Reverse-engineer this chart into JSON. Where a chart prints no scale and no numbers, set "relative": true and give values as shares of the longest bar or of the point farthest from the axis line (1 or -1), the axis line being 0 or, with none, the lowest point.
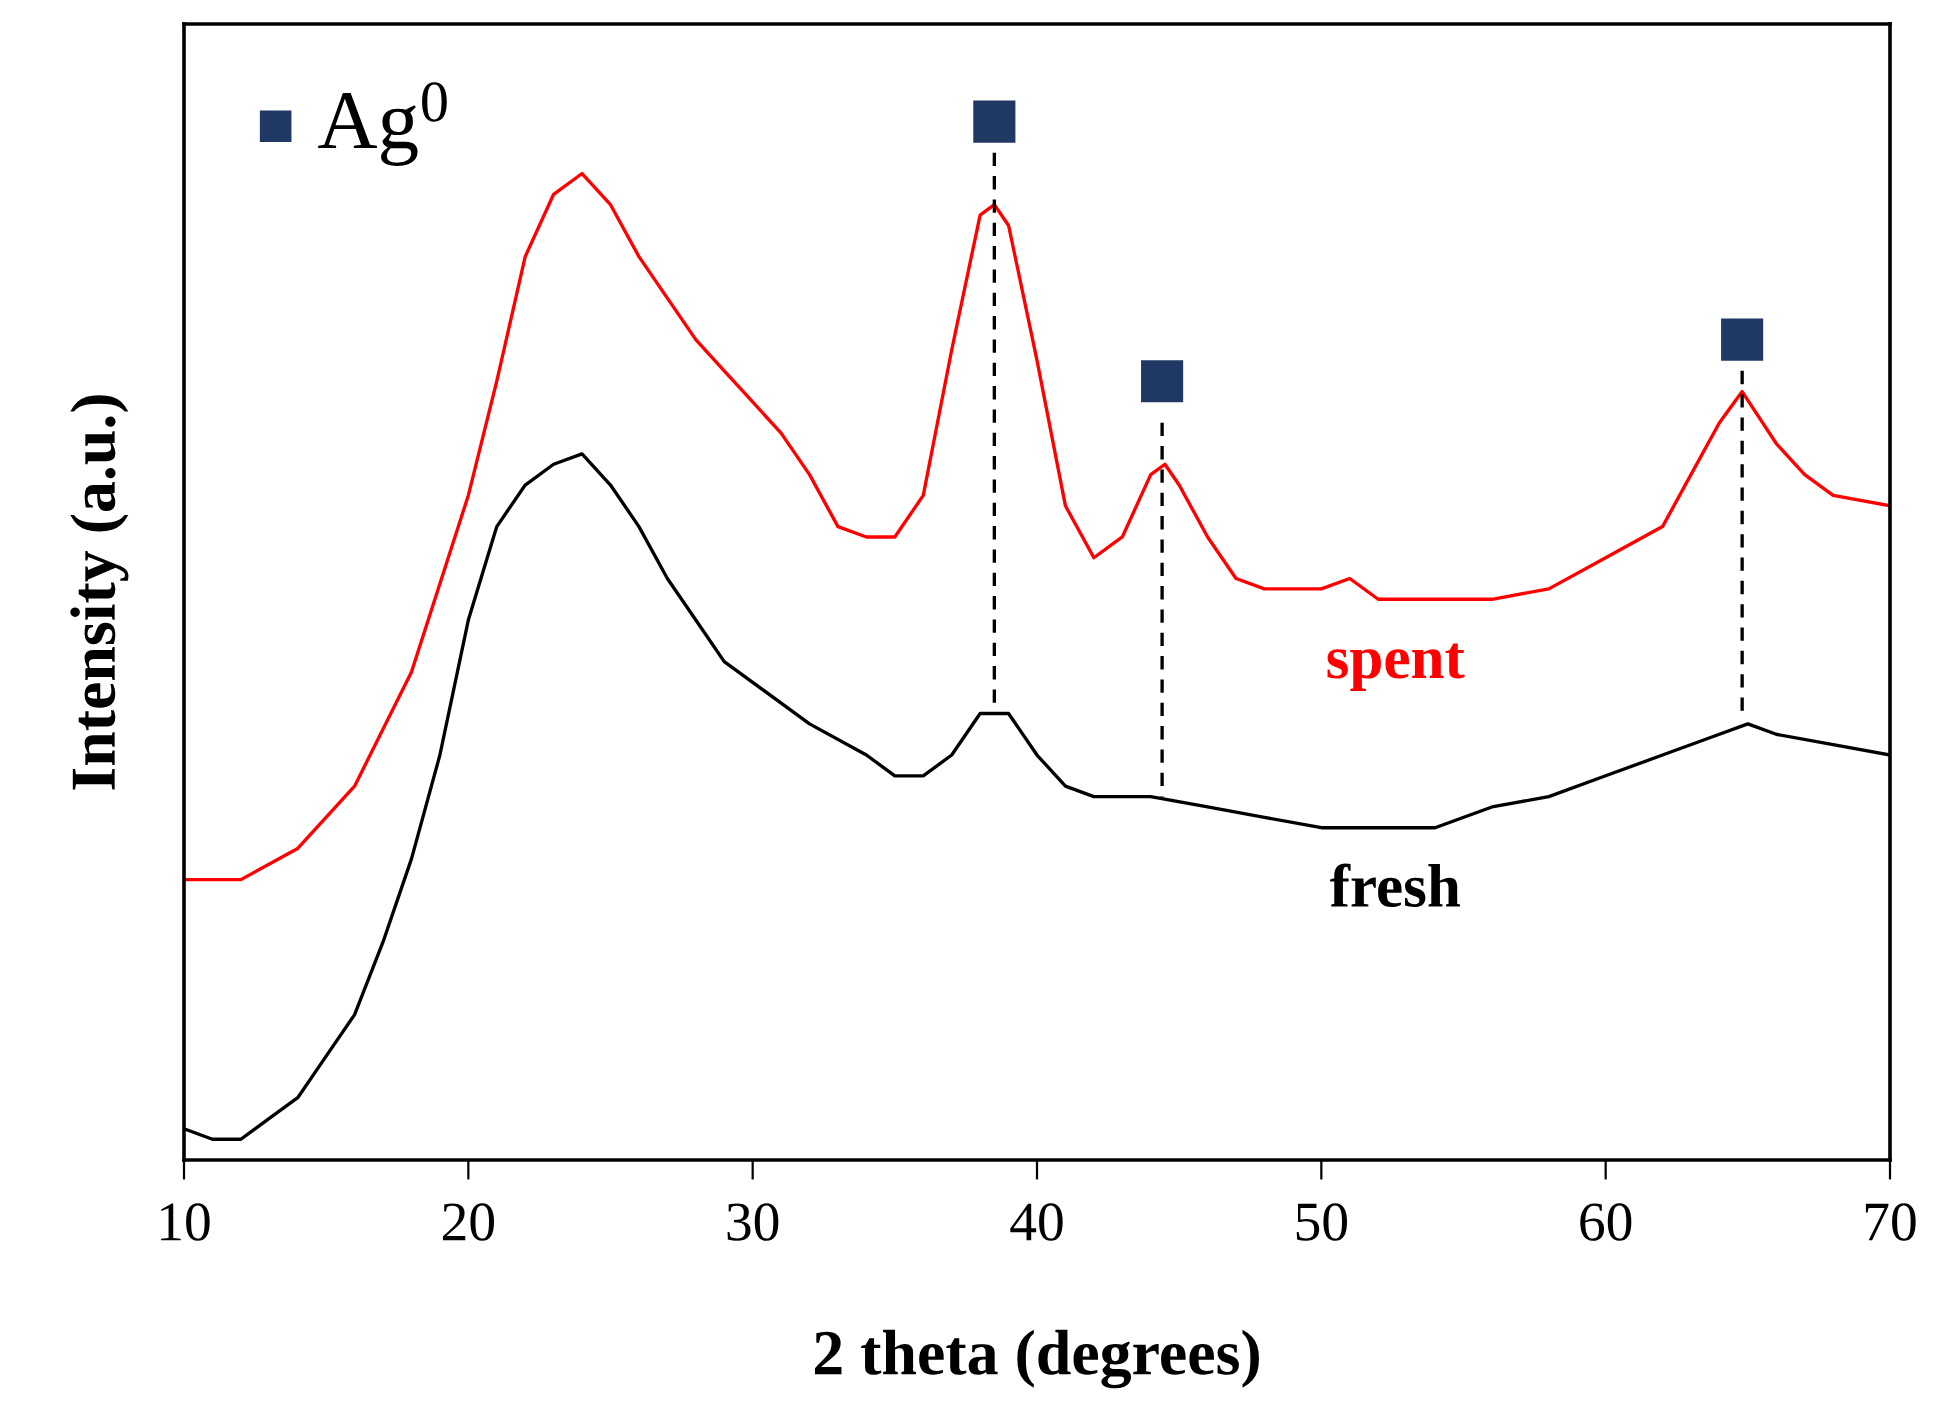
{
  "chart_data": {
    "type": "line",
    "relative": true,
    "xlabel": "2 theta (degrees)",
    "ylabel": "Intensity (a.u.)",
    "xlim": [
      10,
      70
    ],
    "xticks": [
      10,
      20,
      30,
      40,
      50,
      60,
      70
    ],
    "legend": "top left",
    "tick_labels": "x",
    "annotations": [
      "spent",
      "fresh"
    ],
    "series": [
      {
        "color": "#ff0000",
        "line_style": "solid",
        "x": [
          10,
          12,
          14,
          16,
          18,
          20,
          21,
          22,
          23,
          24,
          25,
          26,
          27,
          28,
          29,
          30,
          31,
          32,
          33,
          34,
          35,
          36,
          37,
          38,
          38.5,
          39,
          40,
          41,
          42,
          43,
          44,
          44.5,
          45,
          46,
          47,
          48,
          50,
          51,
          52,
          54,
          56,
          58,
          60,
          62,
          63,
          64,
          64.8,
          66,
          67,
          68,
          70
        ],
        "values": [
          0.27,
          0.27,
          0.3,
          0.36,
          0.47,
          0.64,
          0.75,
          0.87,
          0.93,
          0.95,
          0.92,
          0.87,
          0.83,
          0.79,
          0.76,
          0.73,
          0.7,
          0.66,
          0.61,
          0.6,
          0.6,
          0.64,
          0.78,
          0.91,
          0.92,
          0.9,
          0.77,
          0.63,
          0.58,
          0.6,
          0.66,
          0.67,
          0.65,
          0.6,
          0.56,
          0.55,
          0.55,
          0.56,
          0.54,
          0.54,
          0.54,
          0.55,
          0.58,
          0.61,
          0.66,
          0.71,
          0.74,
          0.69,
          0.66,
          0.64,
          0.63
        ]
      },
      {
        "color": "#000000",
        "line_style": "solid",
        "x": [
          10,
          11,
          12,
          13,
          14,
          15,
          16,
          17,
          18,
          19,
          20,
          21,
          22,
          23,
          24,
          25,
          26,
          27,
          28,
          29,
          30,
          32,
          34,
          35,
          36,
          37,
          38,
          39,
          40,
          41,
          42,
          44,
          46,
          48,
          50,
          52,
          54,
          56,
          58,
          60,
          62,
          64,
          65,
          66,
          68,
          70
        ],
        "values": [
          0.03,
          0.02,
          0.02,
          0.04,
          0.06,
          0.1,
          0.14,
          0.21,
          0.29,
          0.39,
          0.52,
          0.61,
          0.65,
          0.67,
          0.68,
          0.65,
          0.61,
          0.56,
          0.52,
          0.48,
          0.46,
          0.42,
          0.39,
          0.37,
          0.37,
          0.39,
          0.43,
          0.43,
          0.39,
          0.36,
          0.35,
          0.35,
          0.34,
          0.33,
          0.32,
          0.32,
          0.32,
          0.34,
          0.35,
          0.37,
          0.39,
          0.41,
          0.42,
          0.41,
          0.4,
          0.39
        ]
      },
      {
        "color": "#000000",
        "line_style": "dashed",
        "x": [
          38.5,
          38.5
        ],
        "values": [
          0.97,
          0.44
        ]
      },
      {
        "color": "#000000",
        "line_style": "dashed",
        "x": [
          44.4,
          44.4
        ],
        "values": [
          0.71,
          0.35
        ]
      },
      {
        "color": "#000000",
        "line_style": "dashed",
        "x": [
          64.8,
          64.8
        ],
        "values": [
          0.76,
          0.43
        ]
      },
      {
        "name": "Ag$^{0}$",
        "color": "#1f3864",
        "type": "scatter",
        "marker": "square",
        "x": [
          38.5,
          44.4,
          64.8
        ],
        "values": [
          1.0,
          0.75,
          0.79
        ]
      }
    ]
  }
}
